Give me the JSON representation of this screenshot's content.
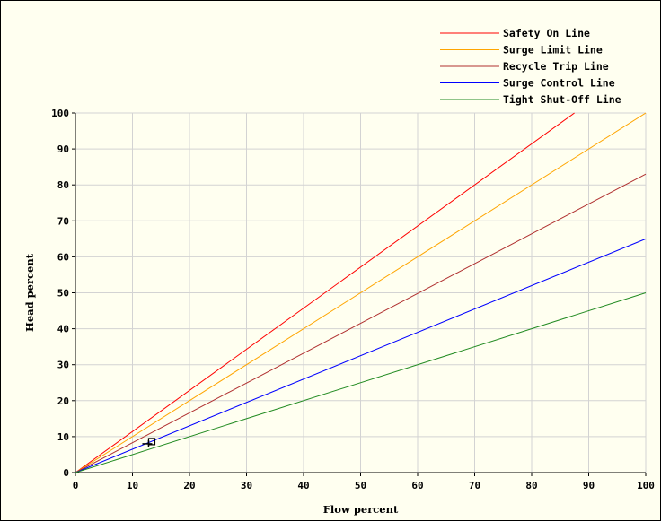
{
  "chart_data": {
    "type": "line",
    "xlabel": "Flow percent",
    "ylabel": "Head percent",
    "xlim": [
      0,
      100
    ],
    "ylim": [
      0,
      100
    ],
    "x_ticks": [
      0,
      10,
      20,
      30,
      40,
      50,
      60,
      70,
      80,
      90,
      100
    ],
    "y_ticks": [
      0,
      10,
      20,
      30,
      40,
      50,
      60,
      70,
      80,
      90,
      100
    ],
    "grid": true,
    "legend_position": "top-right",
    "background_color": "#fffff0",
    "series": [
      {
        "name": "Safety On Line",
        "color": "#ff0000",
        "x": [
          0,
          87.5
        ],
        "y": [
          0,
          100
        ]
      },
      {
        "name": "Surge Limit Line",
        "color": "#ffa500",
        "x": [
          0,
          100
        ],
        "y": [
          0,
          100
        ]
      },
      {
        "name": "Recycle Trip Line",
        "color": "#b03030",
        "x": [
          0,
          100
        ],
        "y": [
          0,
          83
        ]
      },
      {
        "name": "Surge Control Line",
        "color": "#0000ff",
        "x": [
          0,
          100
        ],
        "y": [
          0,
          65
        ]
      },
      {
        "name": "Tight Shut-Off Line",
        "color": "#228b22",
        "x": [
          0,
          100
        ],
        "y": [
          0,
          50
        ]
      }
    ],
    "operating_point": {
      "x": 13.3,
      "y": 8.5
    }
  }
}
